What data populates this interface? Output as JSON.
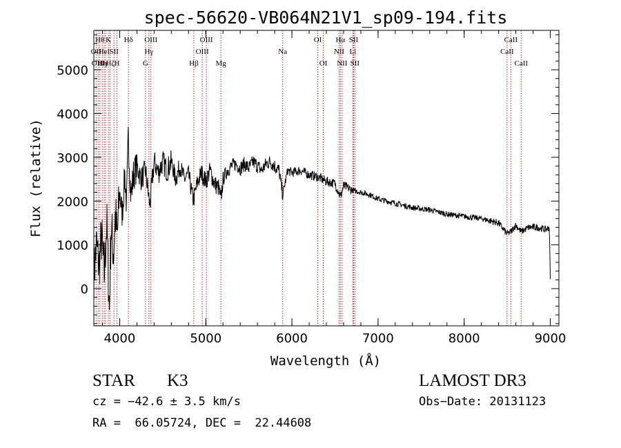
{
  "chart_data": {
    "type": "line",
    "title": "spec-56620-VB064N21V1_sp09-194.fits",
    "xlabel": "Wavelength (Å)",
    "ylabel": "Flux (relative)",
    "xlim": [
      3700,
      9100
    ],
    "ylim": [
      -850,
      5900
    ],
    "xticks": [
      4000,
      5000,
      6000,
      7000,
      8000,
      9000
    ],
    "yticks": [
      0,
      1000,
      2000,
      3000,
      4000,
      5000
    ],
    "x_minor_step": 200,
    "y_minor_step": 200,
    "grid": false,
    "series": [
      {
        "name": "flux",
        "x": [
          3700,
          3730,
          3760,
          3790,
          3820,
          3850,
          3880,
          3900,
          3930,
          3950,
          3970,
          4000,
          4030,
          4060,
          4080,
          4100,
          4130,
          4160,
          4200,
          4250,
          4300,
          4350,
          4400,
          4450,
          4500,
          4550,
          4600,
          4650,
          4700,
          4750,
          4800,
          4850,
          4861,
          4900,
          4950,
          5000,
          5050,
          5100,
          5150,
          5175,
          5200,
          5250,
          5300,
          5350,
          5400,
          5450,
          5500,
          5550,
          5600,
          5650,
          5700,
          5750,
          5800,
          5850,
          5893,
          5950,
          6000,
          6100,
          6200,
          6300,
          6400,
          6500,
          6563,
          6600,
          6700,
          6800,
          6900,
          7000,
          7200,
          7400,
          7600,
          7800,
          8000,
          8200,
          8400,
          8498,
          8542,
          8600,
          8662,
          8750,
          8850,
          8950,
          8990,
          9000
        ],
        "y": [
          300,
          1000,
          500,
          1200,
          300,
          1500,
          -500,
          1400,
          800,
          1700,
          1100,
          2200,
          1700,
          2600,
          1900,
          3500,
          2100,
          2600,
          2800,
          2500,
          2700,
          1900,
          2900,
          2650,
          2900,
          2700,
          2900,
          2500,
          2800,
          2500,
          2600,
          2050,
          2050,
          2400,
          2650,
          2450,
          2700,
          2400,
          2300,
          2000,
          2500,
          2700,
          2800,
          2850,
          2750,
          2850,
          2750,
          2900,
          2800,
          2700,
          2850,
          2900,
          2800,
          2700,
          2150,
          2700,
          2650,
          2700,
          2600,
          2550,
          2450,
          2400,
          2100,
          2350,
          2250,
          2200,
          2150,
          2050,
          1950,
          1850,
          1800,
          1700,
          1650,
          1600,
          1500,
          1250,
          1300,
          1450,
          1300,
          1400,
          1400,
          1350,
          1400,
          200
        ]
      }
    ],
    "line_color": "#000000",
    "marker_color": "#b22222",
    "lines": [
      {
        "w": 3727,
        "label": "OII",
        "row": 2
      },
      {
        "w": 3750,
        "label": "OIII",
        "row": 3
      },
      {
        "w": 3770,
        "label": "Hθ",
        "row": 1
      },
      {
        "w": 3798,
        "label": "Hη",
        "row": 3
      },
      {
        "w": 3820,
        "label": "HeI",
        "row": 2
      },
      {
        "w": 3835,
        "label": "H",
        "row": 3
      },
      {
        "w": 3869,
        "label": "K",
        "row": 1
      },
      {
        "w": 3889,
        "label": "Hζ",
        "row": 3
      },
      {
        "w": 3934,
        "label": "SII",
        "row": 2
      },
      {
        "w": 3968,
        "label": "H",
        "row": 3
      },
      {
        "w": 4102,
        "label": "Hδ",
        "row": 1
      },
      {
        "w": 4300,
        "label": "G",
        "row": 3
      },
      {
        "w": 4340,
        "label": "Hγ",
        "row": 2
      },
      {
        "w": 4363,
        "label": "OIII",
        "row": 1
      },
      {
        "w": 4861,
        "label": "Hβ",
        "row": 3
      },
      {
        "w": 4959,
        "label": "OIII",
        "row": 2
      },
      {
        "w": 5007,
        "label": "OIII",
        "row": 1
      },
      {
        "w": 5175,
        "label": "Mg",
        "row": 3
      },
      {
        "w": 5893,
        "label": "Na",
        "row": 2
      },
      {
        "w": 6300,
        "label": "OI",
        "row": 1
      },
      {
        "w": 6364,
        "label": "OI",
        "row": 3
      },
      {
        "w": 6548,
        "label": "NII",
        "row": 2
      },
      {
        "w": 6563,
        "label": "Hα",
        "row": 1
      },
      {
        "w": 6583,
        "label": "NII",
        "row": 3
      },
      {
        "w": 6708,
        "label": "Li",
        "row": 2
      },
      {
        "w": 6716,
        "label": "SII",
        "row": 1
      },
      {
        "w": 6731,
        "label": "SII",
        "row": 3
      },
      {
        "w": 8498,
        "label": "CaII",
        "row": 2
      },
      {
        "w": 8542,
        "label": "CaII",
        "row": 1
      },
      {
        "w": 8662,
        "label": "CaII",
        "row": 3
      }
    ]
  },
  "info": {
    "class": "STAR",
    "subclass": "K3",
    "survey": "LAMOST DR3",
    "cz": "cz = −42.6 ± 3.5 km/s",
    "obs_date": "Obs−Date: 20131123",
    "coords": "RA =  66.05724, DEC =  22.44608"
  }
}
